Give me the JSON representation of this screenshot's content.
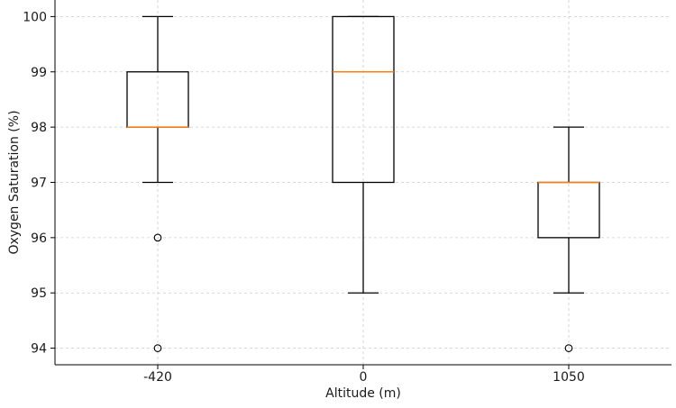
{
  "chart_data": {
    "type": "box",
    "xlabel": "Altitude (m)",
    "ylabel": "Oxygen Saturation (%)",
    "ylim": [
      93.7,
      100.3
    ],
    "yticks": [
      94,
      95,
      96,
      97,
      98,
      99,
      100
    ],
    "grid": true,
    "colors": {
      "box": "#000000",
      "median": "#ff7f0e",
      "grid": "#cccccc"
    },
    "categories": [
      "-420",
      "0",
      "1050"
    ],
    "boxes": [
      {
        "label": "-420",
        "whislo": 97,
        "q1": 98,
        "med": 98,
        "q3": 99,
        "whishi": 100,
        "fliers": [
          96,
          94
        ]
      },
      {
        "label": "0",
        "whislo": 95,
        "q1": 97,
        "med": 99,
        "q3": 100,
        "whishi": 100,
        "fliers": []
      },
      {
        "label": "1050",
        "whislo": 95,
        "q1": 96,
        "med": 97,
        "q3": 97,
        "whishi": 98,
        "fliers": [
          94
        ]
      }
    ]
  }
}
